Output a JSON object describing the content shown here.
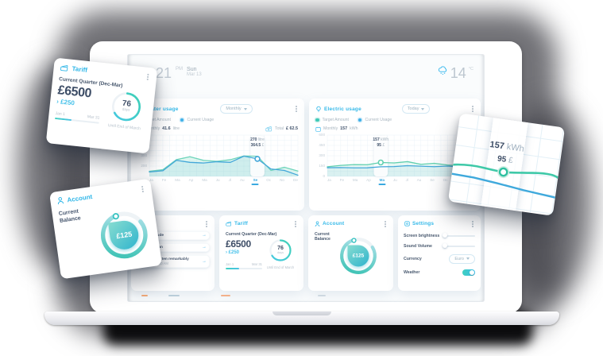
{
  "header": {
    "time": "21",
    "period": "PM",
    "day": "Sun",
    "date": "Mar 13",
    "temp": "14",
    "temp_unit": "°C"
  },
  "water_panel": {
    "title": "Water usage",
    "range_dropdown": "Monthly",
    "legend_target": "Target Amount",
    "legend_current": "Current Usage",
    "monthly_label": "Monthly",
    "monthly_value": "41.6",
    "monthly_unit": "litre",
    "total_label": "Total",
    "total_value": "£ 62.5"
  },
  "electric_panel": {
    "title": "Electric usage",
    "range_dropdown": "Today",
    "legend_target": "Target Amount",
    "legend_current": "Current Usage",
    "monthly_label": "Monthly",
    "monthly_value": "157",
    "monthly_unit": "kWh"
  },
  "messages_card": {
    "title": "",
    "arrow_icon": "→",
    "items": [
      {
        "text": "se solicitude",
        "sub": ""
      },
      {
        "text": "change man",
        "sub": ""
      },
      {
        "text": "Indulgence ten remarkably",
        "sub": "March 2, 11.20 AM"
      }
    ]
  },
  "tariff": {
    "title": "Tariff",
    "quarter": "Current Quarter (Dec-Mar)",
    "amount": "£6500",
    "delta_arrow": "›",
    "delta": "£250",
    "period_start": "Jan 1",
    "period_end": "Mar 31",
    "progress_pct": 38,
    "ring_pct": 66,
    "days_value": "76",
    "days_label": "days",
    "until": "Until End of March"
  },
  "account": {
    "title": "Account",
    "balance_label": "Current Balance",
    "balance": "£125",
    "gauge_pct": 80
  },
  "settings": {
    "title": "Settings",
    "brightness_label": "Screen brightness",
    "brightness_pct": 62,
    "volume_label": "Sound Volume",
    "volume_pct": 25,
    "currency_label": "Currency",
    "currency_value": "Euro",
    "weather_label": "Weather",
    "weather_on": true
  },
  "floating_chart": {
    "value": "157",
    "unit": "kWh",
    "cost_value": "95",
    "cost_unit": "£"
  },
  "chart_data": [
    {
      "type": "line",
      "id": "water",
      "title": "Water usage",
      "legend_position": "top",
      "x": [
        "Ja",
        "Fe",
        "Ma",
        "Ap",
        "Ma",
        "Ju",
        "Jl",
        "Au",
        "Se",
        "Oc",
        "No",
        "De"
      ],
      "ylim": [
        100,
        500
      ],
      "yticks": [
        400,
        300,
        200
      ],
      "grid_divisions": 8,
      "series": [
        {
          "name": "Target Amount",
          "color": "#6ed4bb",
          "fill": "rgba(110,212,187,0.22)",
          "values": [
            150,
            165,
            262,
            290,
            256,
            246,
            262,
            298,
            295,
            158,
            188,
            152
          ]
        },
        {
          "name": "Current Usage",
          "color": "#43a7d9",
          "fill": "rgba(67,167,217,0.10)",
          "values": [
            143,
            155,
            256,
            236,
            230,
            242,
            236,
            296,
            270,
            172,
            158,
            112
          ]
        }
      ],
      "highlight": {
        "index": 8,
        "label": "Se"
      },
      "marker_series": 1,
      "tooltip": {
        "v1": "270",
        "u1": "litre",
        "v2": "364.5",
        "u2": "£"
      }
    },
    {
      "type": "line",
      "id": "electric",
      "title": "Electric usage",
      "legend_position": "top",
      "x": [
        "Ja",
        "Fe",
        "Ma",
        "Ap",
        "Ma",
        "Ju",
        "Jl",
        "Au",
        "Se",
        "Oc",
        "No",
        "De"
      ],
      "ylim": [
        0,
        600
      ],
      "yticks": [
        600,
        450,
        300,
        150,
        0
      ],
      "grid_divisions": 8,
      "series": [
        {
          "name": "Target Amount",
          "color": "#5fcfae",
          "fill": "rgba(95,207,174,0.14)",
          "values": [
            140,
            160,
            172,
            170,
            202,
            196,
            214,
            176,
            190,
            166,
            152,
            140
          ]
        },
        {
          "name": "Current Usage",
          "color": "#43a7d9",
          "fill": "rgba(67,167,217,0.08)",
          "values": [
            126,
            128,
            124,
            125,
            140,
            143,
            156,
            149,
            141,
            150,
            136,
            120
          ]
        }
      ],
      "highlight": {
        "index": 4,
        "label": "Ma"
      },
      "marker_series": 0,
      "tooltip": {
        "v1": "157",
        "u1": "kWh",
        "v2": "95",
        "u2": "£"
      }
    }
  ]
}
